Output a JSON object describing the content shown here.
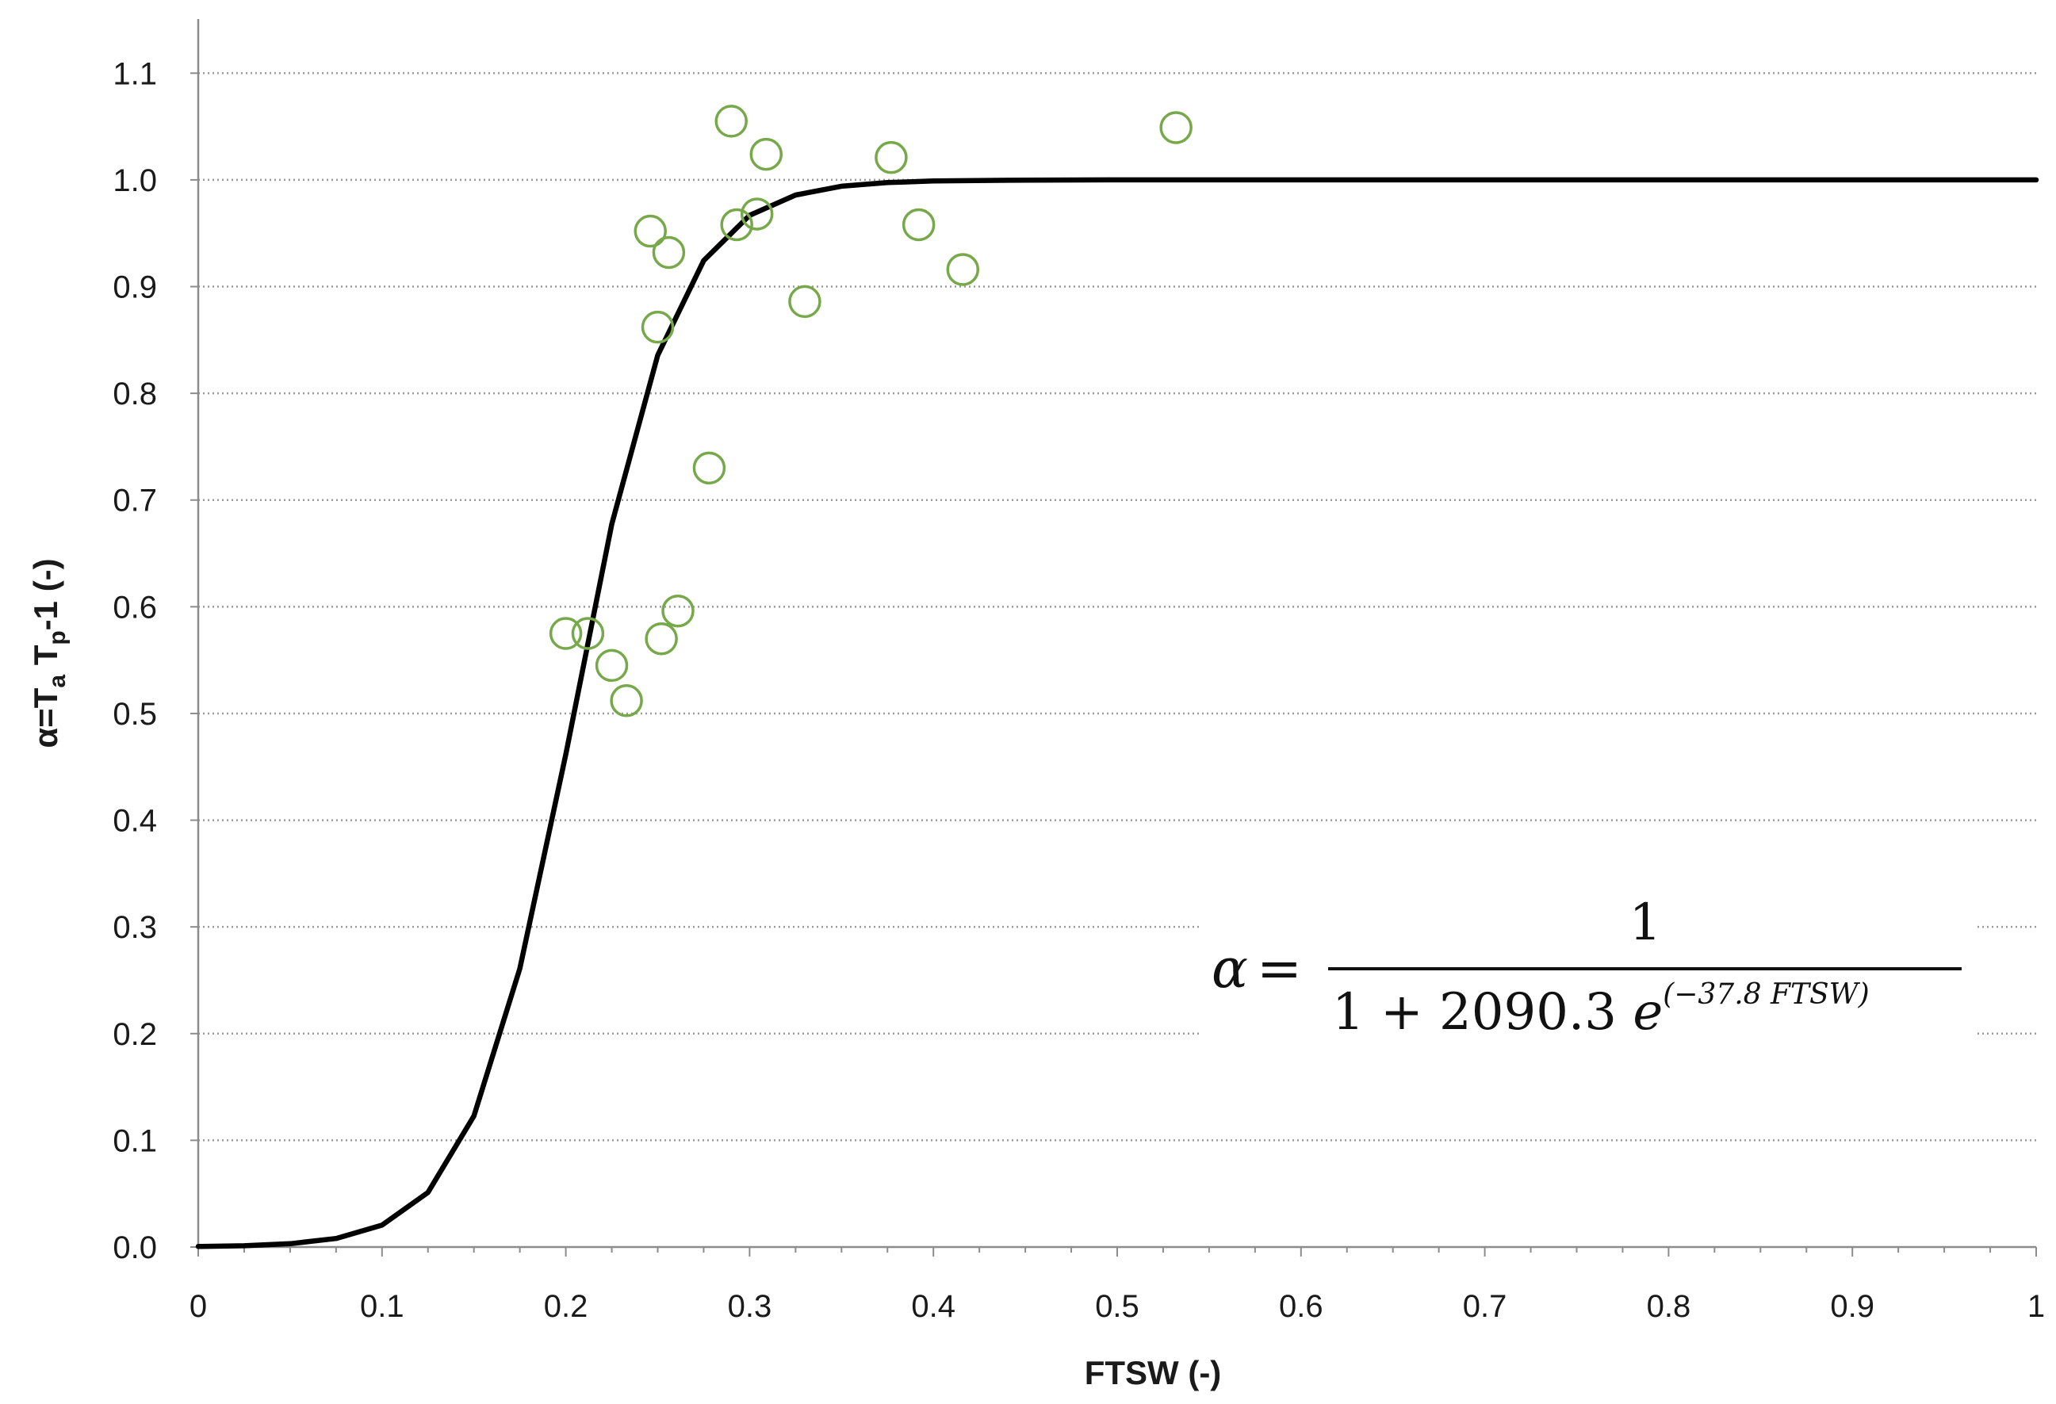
{
  "chart_data": {
    "type": "scatter",
    "title": "",
    "xlabel": "FTSW (-)",
    "ylabel": {
      "prefix": "α=T",
      "sub1": "a",
      "mid": " T",
      "sub2": "p",
      "suffix": "-1 (-)"
    },
    "xlim": [
      0,
      1
    ],
    "ylim": [
      0,
      1.15
    ],
    "x_ticks": [
      "0",
      "0.1",
      "0.2",
      "0.3",
      "0.4",
      "0.5",
      "0.6",
      "0.7",
      "0.8",
      "0.9",
      "1"
    ],
    "y_ticks": [
      "0.0",
      "0.1",
      "0.2",
      "0.3",
      "0.4",
      "0.5",
      "0.6",
      "0.7",
      "0.8",
      "0.9",
      "1.0",
      "1.1"
    ],
    "grid": "horizontal-dotted",
    "colors": {
      "points": "#77a94a",
      "curve": "#000000"
    },
    "series": [
      {
        "kind": "scatter",
        "x": [
          0.2,
          0.212,
          0.225,
          0.233,
          0.246,
          0.25,
          0.252,
          0.256,
          0.261,
          0.278,
          0.29,
          0.293,
          0.304,
          0.309,
          0.33,
          0.377,
          0.392,
          0.416,
          0.532
        ],
        "y": [
          0.575,
          0.575,
          0.545,
          0.512,
          0.952,
          0.862,
          0.57,
          0.932,
          0.596,
          0.73,
          1.055,
          0.958,
          0.968,
          1.024,
          0.886,
          1.021,
          0.958,
          0.916,
          1.049
        ]
      },
      {
        "kind": "line",
        "x": [
          0,
          0.025,
          0.05,
          0.075,
          0.1,
          0.125,
          0.15,
          0.175,
          0.2,
          0.225,
          0.25,
          0.275,
          0.3,
          0.325,
          0.35,
          0.375,
          0.4,
          0.45,
          0.5,
          0.6,
          0.7,
          0.8,
          0.9,
          1.0
        ],
        "y": [
          0.0005,
          0.0012,
          0.0031,
          0.008,
          0.0205,
          0.0512,
          0.1228,
          0.2609,
          0.4617,
          0.6775,
          0.8356,
          0.9244,
          0.9668,
          0.9858,
          0.9941,
          0.9975,
          0.999,
          0.9998,
          1.0,
          1.0,
          1.0,
          1.0,
          1.0,
          1.0
        ]
      }
    ],
    "annotation": {
      "lhs": "α",
      "equals": "=",
      "numerator": "1",
      "denominator_main": "1 + 2090.3 ",
      "denominator_e": "e",
      "exponent": "(−37.8 FTSW)"
    }
  }
}
